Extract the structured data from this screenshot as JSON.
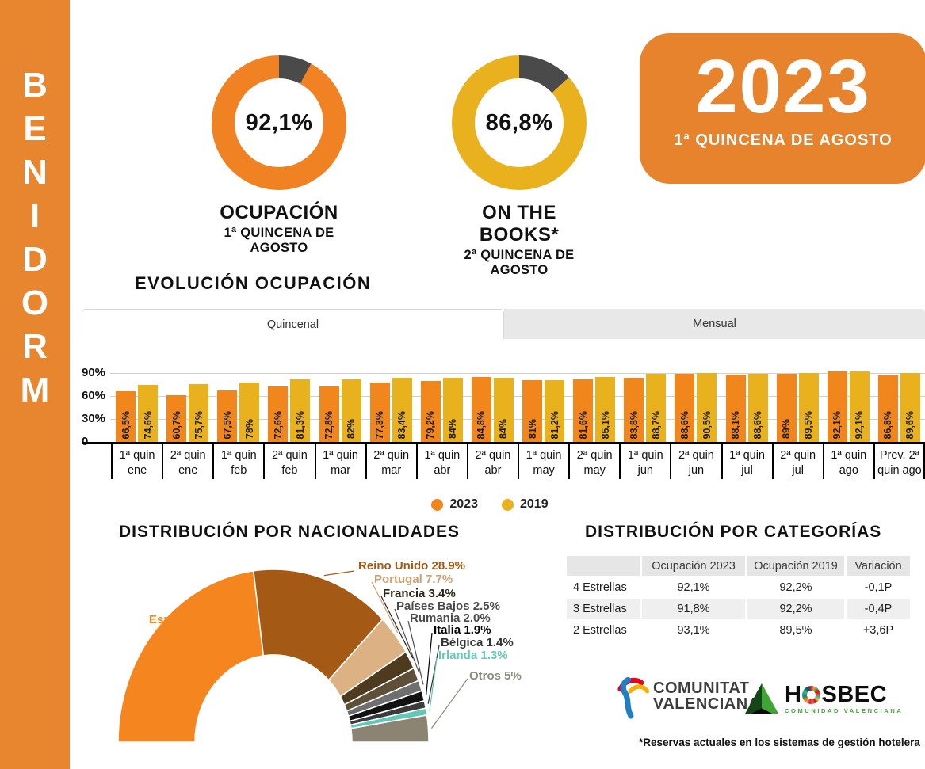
{
  "sidebar": {
    "letters": [
      "B",
      "E",
      "N",
      "I",
      "D",
      "O",
      "R",
      "M"
    ]
  },
  "year_badge": {
    "year": "2023",
    "subtitle": "1ª QUINCENA DE AGOSTO"
  },
  "evolution": {
    "title": "EVOLUCIÓN OCUPACIÓN",
    "tabs": [
      {
        "label": "Quincenal",
        "active": true
      },
      {
        "label": "Mensual",
        "active": false
      }
    ]
  },
  "legend": [
    {
      "label": "2023",
      "color": "#F0861C"
    },
    {
      "label": "2019",
      "color": "#EAB11E"
    }
  ],
  "chart_data": [
    {
      "id": "kpi-ocupacion",
      "type": "donut",
      "value": 92.1,
      "center_label": "92,1%",
      "title": "OCUPACIÓN",
      "subtitle": "1ª QUINCENA DE AGOSTO",
      "color": "#F08224",
      "rest_color": "#4A4A4A"
    },
    {
      "id": "kpi-on-the-books",
      "type": "donut",
      "value": 86.8,
      "center_label": "86,8%",
      "title": "ON THE BOOKS*",
      "subtitle": "2ª QUINCENA DE AGOSTO",
      "color": "#E9B11E",
      "rest_color": "#4A4A4A"
    },
    {
      "id": "evolution",
      "type": "bar",
      "title": "EVOLUCIÓN OCUPACIÓN",
      "categories": [
        [
          "1ª quin",
          "ene"
        ],
        [
          "2ª quin",
          "ene"
        ],
        [
          "1ª quin",
          "feb"
        ],
        [
          "2ª quin",
          "feb"
        ],
        [
          "1ª quin",
          "mar"
        ],
        [
          "2ª quin",
          "mar"
        ],
        [
          "1ª quin",
          "abr"
        ],
        [
          "2ª quin",
          "abr"
        ],
        [
          "1ª quin",
          "may"
        ],
        [
          "2ª quin",
          "may"
        ],
        [
          "1ª quin",
          "jun"
        ],
        [
          "2ª quin",
          "jun"
        ],
        [
          "1ª quin",
          "jul"
        ],
        [
          "2ª quin",
          "jul"
        ],
        [
          "1ª quin",
          "ago"
        ],
        [
          "Prev. 2ª",
          "quin ago"
        ]
      ],
      "series": [
        {
          "name": "2023",
          "color": "#F0861C",
          "values": [
            66.5,
            60.7,
            67.5,
            72.6,
            72.8,
            77.3,
            79.2,
            84.8,
            81,
            81.6,
            83.8,
            88.6,
            88.1,
            89,
            92.1,
            86.8
          ],
          "labels": [
            "66,5%",
            "60,7%",
            "67,5%",
            "72,6%",
            "72,8%",
            "77,3%",
            "79,2%",
            "84,8%",
            "81%",
            "81,6%",
            "83,8%",
            "88,6%",
            "88,1%",
            "89%",
            "92,1%",
            "86,8%"
          ]
        },
        {
          "name": "2019",
          "color": "#EAB11E",
          "values": [
            74.6,
            75.7,
            78,
            81.3,
            82,
            83.4,
            84,
            84,
            81.2,
            85.1,
            88.7,
            90.5,
            88.6,
            89.5,
            92.1,
            89.6
          ],
          "labels": [
            "74,6%",
            "75,7%",
            "78%",
            "81,3%",
            "82%",
            "83,4%",
            "84%",
            "84%",
            "81,2%",
            "85,1%",
            "88,7%",
            "90,5%",
            "88,6%",
            "89,5%",
            "92,1%",
            "89,6%"
          ]
        }
      ],
      "yticks": [
        {
          "label": "90%",
          "value": 90
        },
        {
          "label": "60%",
          "value": 60
        },
        {
          "label": "30%",
          "value": 30
        },
        {
          "label": "0",
          "value": 0
        }
      ],
      "ylim": [
        0,
        100
      ],
      "grid": true,
      "legend_position": "bottom"
    },
    {
      "id": "nationalities",
      "type": "half-donut",
      "title": "DISTRIBUCIÓN POR NACIONALIDADES",
      "segments": [
        {
          "name": "España",
          "value": 45.9,
          "label": "España 45.9%",
          "color": "#F5861F",
          "label_color": "#F5861F"
        },
        {
          "name": "Reino Unido",
          "value": 28.9,
          "label": "Reino Unido 28.9%",
          "color": "#A45A15",
          "label_color": "#A45A15"
        },
        {
          "name": "Portugal",
          "value": 7.7,
          "label": "Portugal 7.7%",
          "color": "#DCB183",
          "label_color": "#C9A275"
        },
        {
          "name": "Francia",
          "value": 3.4,
          "label": "Francia 3.4%",
          "color": "#4E3A1F",
          "label_color": "#2E2317"
        },
        {
          "name": "Países Bajos",
          "value": 2.5,
          "label": "Países Bajos 2.5%",
          "color": "#5D4F38",
          "label_color": "#4A4A4A"
        },
        {
          "name": "Rumania",
          "value": 2.0,
          "label": "Rumania 2.0%",
          "color": "#6F6F6F",
          "label_color": "#4A4A4A"
        },
        {
          "name": "Italia",
          "value": 1.9,
          "label": "Italia 1.9%",
          "color": "#121212",
          "label_color": "#000000"
        },
        {
          "name": "Bélgica",
          "value": 1.4,
          "label": "Bélgica 1.4%",
          "color": "#3B3B3B",
          "label_color": "#333333"
        },
        {
          "name": "Irlanda",
          "value": 1.3,
          "label": "Irlanda 1.3%",
          "color": "#62C8B5",
          "label_color": "#62C8B5"
        },
        {
          "name": "Otros",
          "value": 5.0,
          "label": "Otros 5%",
          "color": "#8C8472",
          "label_color": "#8A8A7E"
        }
      ]
    }
  ],
  "categories_table": {
    "title": "DISTRIBUCIÓN POR CATEGORÍAS",
    "headers": [
      "",
      "Ocupación 2023",
      "Ocupación 2019",
      "Variación"
    ],
    "rows": [
      [
        "4 Estrellas",
        "92,1%",
        "92,2%",
        "-0,1P"
      ],
      [
        "3 Estrellas",
        "91,8%",
        "92,2%",
        "-0,4P"
      ],
      [
        "2 Estrellas",
        "93,1%",
        "89,5%",
        "+3,6P"
      ]
    ]
  },
  "footer": {
    "cv_logo_line1": "COMUNITAT",
    "cv_logo_line2": "VALENCIANA",
    "hosbec_h": "H",
    "hosbec_rest": "SBEC",
    "hosbec_sub": "COMUNIDAD VALENCIANA",
    "footnote": "*Reservas actuales en los sistemas de gestión hotelera"
  }
}
